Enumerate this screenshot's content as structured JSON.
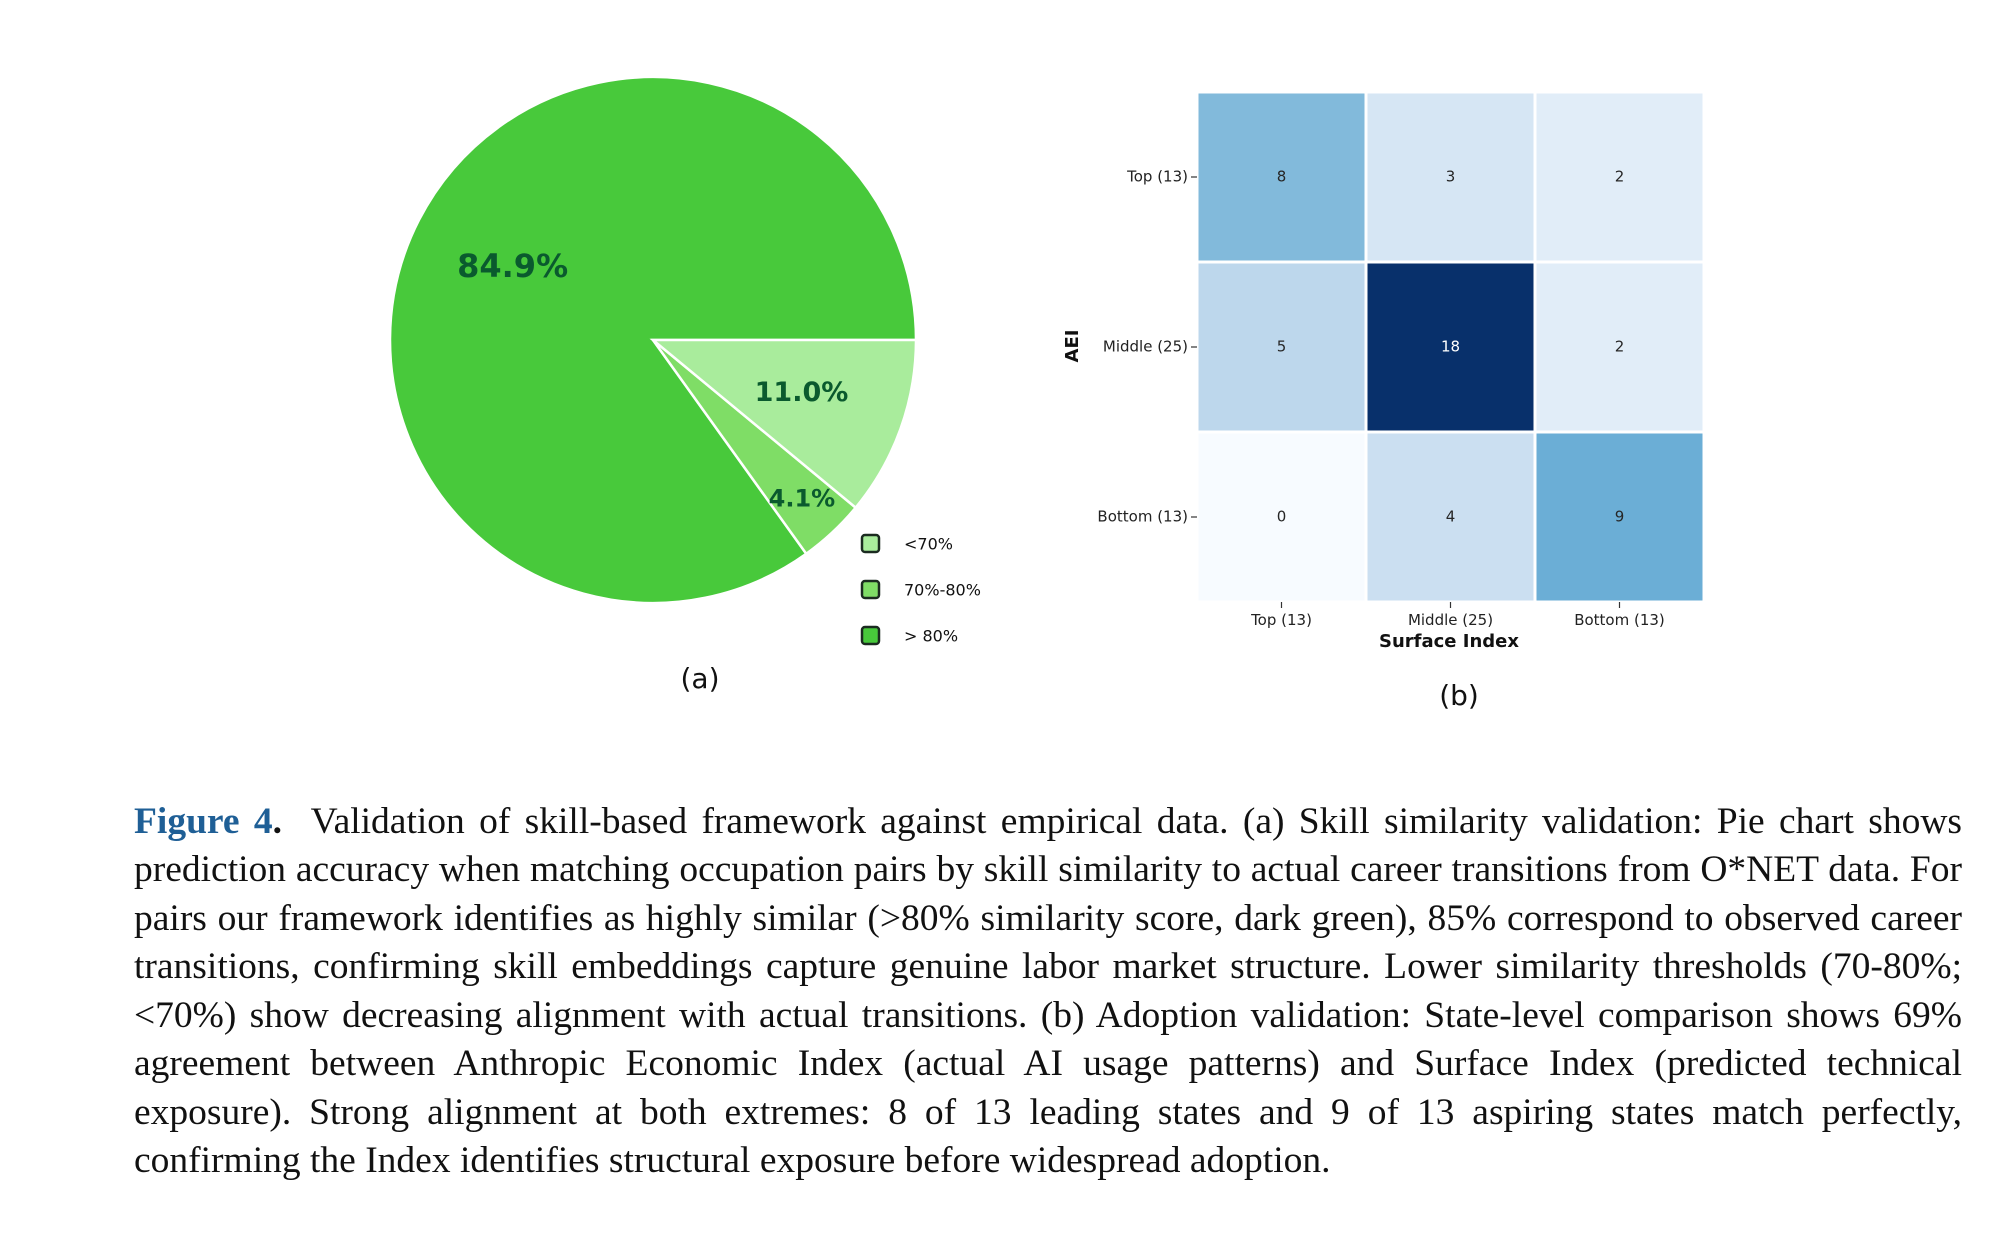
{
  "chart_data": [
    {
      "type": "pie",
      "panel_label": "(a)",
      "slices": [
        {
          "label": "> 80%",
          "value": 84.9,
          "value_label": "84.9%",
          "color": "#48c93b"
        },
        {
          "label": "70%-80%",
          "value": 4.1,
          "value_label": "4.1%",
          "color": "#7fdd66"
        },
        {
          "label": "<70%",
          "value": 11.0,
          "value_label": "11.0%",
          "color": "#a9ec9c"
        }
      ],
      "legend": {
        "placement": "bottom-right",
        "entries": [
          "<70%",
          "70%-80%",
          "> 80%"
        ]
      },
      "label_color": "#0a5a2e"
    },
    {
      "type": "heatmap",
      "panel_label": "(b)",
      "xlabel": "Surface Index",
      "ylabel": "AEI",
      "x_categories": [
        "Top (13)",
        "Middle (25)",
        "Bottom (13)"
      ],
      "y_categories": [
        "Top (13)",
        "Middle (25)",
        "Bottom (13)"
      ],
      "values": [
        [
          8,
          3,
          2
        ],
        [
          5,
          18,
          2
        ],
        [
          0,
          4,
          9
        ]
      ],
      "colormap": "Blues",
      "vmin": 0,
      "vmax": 18,
      "grid": true
    }
  ],
  "caption": {
    "label": "Figure 4",
    "separator": ".",
    "text": "Validation of skill-based framework against empirical data. (a) Skill similarity validation: Pie chart shows prediction accuracy when matching occupation pairs by skill similarity to actual career transitions from O*NET data. For pairs our framework identifies as highly similar (>80% similarity score, dark green), 85% correspond to observed career transitions, confirming skill embeddings capture genuine labor market structure. Lower similarity thresholds (70-80%; <70%) show decreasing alignment with actual transitions. (b) Adoption validation: State-level comparison shows 69% agreement between Anthropic Economic Index (actual AI usage patterns) and Surface Index (predicted technical exposure). Strong alignment at both extremes: 8 of 13 leading states and 9 of 13 aspiring states match perfectly, confirming the Index identifies structural exposure before widespread adoption."
  }
}
